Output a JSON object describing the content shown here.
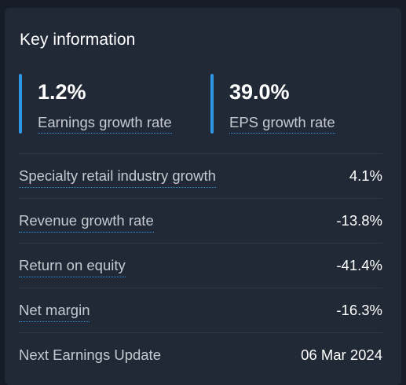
{
  "card": {
    "title": "Key information"
  },
  "highlights": [
    {
      "value": "1.2%",
      "label": "Earnings growth rate"
    },
    {
      "value": "39.0%",
      "label": "EPS growth rate"
    }
  ],
  "rows": [
    {
      "label": "Specialty retail industry growth",
      "value": "4.1%"
    },
    {
      "label": "Revenue growth rate",
      "value": "-13.8%"
    },
    {
      "label": "Return on equity",
      "value": "-41.4%"
    },
    {
      "label": "Net margin",
      "value": "-16.3%"
    },
    {
      "label": "Next Earnings Update",
      "value": "06 Mar 2024"
    }
  ],
  "colors": {
    "accent": "#2e97e6",
    "card_background": "#212936",
    "page_background": "#171d26",
    "divider": "#2f3846"
  }
}
